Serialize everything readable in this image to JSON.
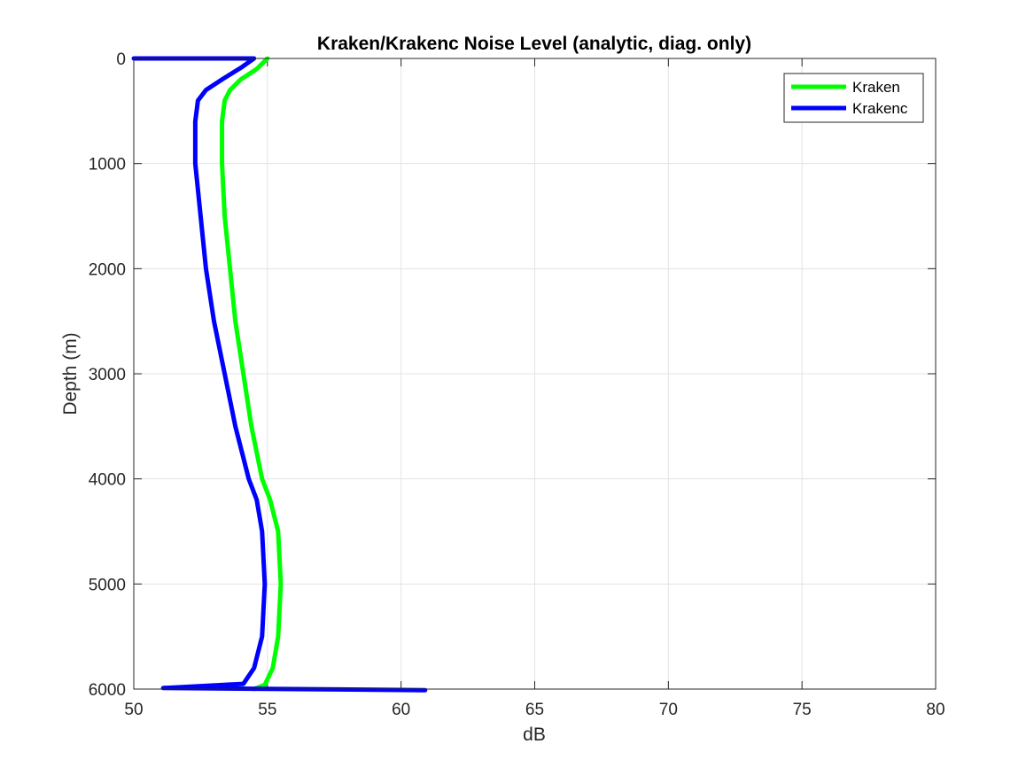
{
  "chart_data": {
    "type": "line",
    "title": "Kraken/Krakenc Noise Level (analytic, diag. only)",
    "xlabel": "dB",
    "ylabel": "Depth (m)",
    "xlim": [
      50,
      80
    ],
    "ylim": [
      0,
      6000
    ],
    "y_reversed": true,
    "grid": true,
    "legend_location": "top-right",
    "xticks": [
      "50",
      "55",
      "60",
      "65",
      "70",
      "75",
      "80"
    ],
    "yticks": [
      "0",
      "1000",
      "2000",
      "3000",
      "4000",
      "5000",
      "6000"
    ],
    "series": [
      {
        "name": "Kraken",
        "color": "#00ff00",
        "points": [
          [
            55.0,
            0
          ],
          [
            54.8,
            50
          ],
          [
            54.6,
            100
          ],
          [
            54.0,
            200
          ],
          [
            53.6,
            300
          ],
          [
            53.4,
            400
          ],
          [
            53.3,
            600
          ],
          [
            53.3,
            1000
          ],
          [
            53.4,
            1500
          ],
          [
            53.6,
            2000
          ],
          [
            53.8,
            2500
          ],
          [
            54.1,
            3000
          ],
          [
            54.4,
            3500
          ],
          [
            54.8,
            4000
          ],
          [
            55.1,
            4200
          ],
          [
            55.4,
            4500
          ],
          [
            55.5,
            5000
          ],
          [
            55.4,
            5500
          ],
          [
            55.2,
            5800
          ],
          [
            54.9,
            5960
          ],
          [
            54.5,
            6000
          ]
        ]
      },
      {
        "name": "Krakenc",
        "color": "#0000ff",
        "points": [
          [
            50.0,
            0
          ],
          [
            54.5,
            0
          ],
          [
            54.0,
            90
          ],
          [
            53.3,
            200
          ],
          [
            52.7,
            300
          ],
          [
            52.4,
            400
          ],
          [
            52.3,
            600
          ],
          [
            52.3,
            1000
          ],
          [
            52.5,
            1500
          ],
          [
            52.7,
            2000
          ],
          [
            53.0,
            2500
          ],
          [
            53.4,
            3000
          ],
          [
            53.8,
            3500
          ],
          [
            54.3,
            4000
          ],
          [
            54.6,
            4200
          ],
          [
            54.8,
            4500
          ],
          [
            54.9,
            5000
          ],
          [
            54.8,
            5500
          ],
          [
            54.5,
            5800
          ],
          [
            54.1,
            5950
          ],
          [
            51.1,
            5990
          ],
          [
            56.0,
            6000
          ],
          [
            60.9,
            6010
          ]
        ]
      }
    ]
  }
}
